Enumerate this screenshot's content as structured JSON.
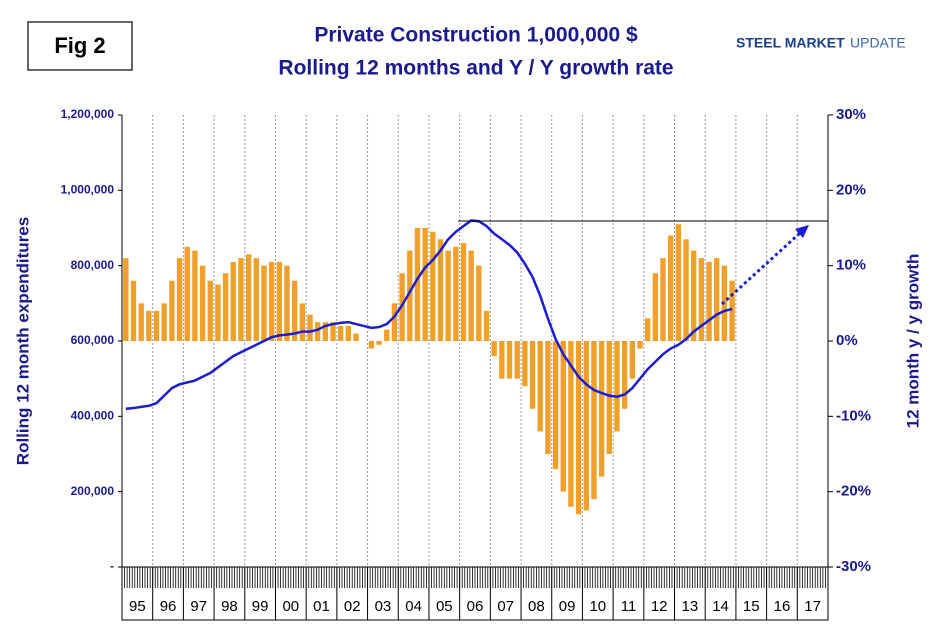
{
  "fig_label": "Fig 2",
  "logo": {
    "bold": "STEEL MARKET",
    "light": "UPDATE"
  },
  "chart_data": {
    "type": "combo",
    "title": [
      "Private Construction 1,000,000 $",
      "Rolling 12 months and Y / Y growth rate"
    ],
    "y_label": "Rolling 12 month expenditures",
    "y2_label": "12 month y / y growth",
    "categories": [
      "95",
      null,
      null,
      null,
      "96",
      null,
      null,
      null,
      "97",
      null,
      null,
      null,
      "98",
      null,
      null,
      null,
      "99",
      null,
      null,
      null,
      "00",
      null,
      null,
      null,
      "01",
      null,
      null,
      null,
      "02",
      null,
      null,
      null,
      "03",
      null,
      null,
      null,
      "04",
      null,
      null,
      null,
      "05",
      null,
      null,
      null,
      "06",
      null,
      null,
      null,
      "07",
      null,
      null,
      null,
      "08",
      null,
      null,
      null,
      "09",
      null,
      null,
      null,
      "10",
      null,
      null,
      null,
      "11",
      null,
      null,
      null,
      "12",
      null,
      null,
      null,
      "13",
      null,
      null,
      null,
      "14",
      null,
      null,
      null,
      "15",
      null,
      null,
      null,
      "16",
      null,
      null,
      null,
      "17",
      null,
      null,
      null
    ],
    "series": [
      {
        "type": "bar",
        "axis": "y2",
        "color": "#f0a02a",
        "values": [
          11,
          8,
          5,
          4,
          4,
          5,
          8,
          11,
          12.5,
          12,
          10,
          8,
          7.5,
          9,
          10.5,
          11,
          11.5,
          11,
          10,
          10.5,
          10.5,
          10,
          8,
          5,
          3.5,
          2.5,
          2.5,
          2.5,
          2,
          2,
          1,
          0,
          -1,
          -0.5,
          1.5,
          5,
          9,
          12,
          15,
          15,
          14.5,
          13.5,
          12,
          12.5,
          13,
          12,
          10,
          4,
          -2,
          -5,
          -5,
          -5,
          -6,
          -9,
          -12,
          -15,
          -17,
          -20,
          -22,
          -23,
          -22.5,
          -21,
          -18,
          -15,
          -12,
          -9,
          -5,
          -1,
          3,
          9,
          11,
          14,
          15.5,
          13.5,
          12,
          11,
          10.5,
          11,
          10,
          8,
          null,
          null,
          null,
          null,
          null,
          null,
          null,
          null,
          null,
          null,
          null,
          null
        ]
      },
      {
        "type": "line",
        "color": "#1c1cd0",
        "values": [
          420000,
          422000,
          425000,
          428000,
          435000,
          455000,
          475000,
          485000,
          490000,
          495000,
          505000,
          515000,
          530000,
          545000,
          560000,
          570000,
          580000,
          590000,
          600000,
          610000,
          615000,
          617000,
          620000,
          625000,
          625000,
          630000,
          640000,
          645000,
          648000,
          650000,
          645000,
          640000,
          635000,
          637000,
          645000,
          665000,
          695000,
          730000,
          765000,
          795000,
          815000,
          840000,
          870000,
          890000,
          905000,
          920000,
          918000,
          905000,
          885000,
          870000,
          855000,
          835000,
          805000,
          770000,
          720000,
          660000,
          605000,
          565000,
          535000,
          505000,
          485000,
          470000,
          462000,
          455000,
          452000,
          458000,
          475000,
          500000,
          525000,
          545000,
          565000,
          580000,
          590000,
          605000,
          625000,
          640000,
          655000,
          670000,
          680000,
          685000,
          null,
          null,
          null,
          null,
          null,
          null,
          null,
          null,
          null,
          null,
          null,
          null
        ]
      }
    ],
    "ylim": [
      0,
      1200000
    ],
    "yticks": [
      {
        "value": 0,
        "label": "-"
      },
      {
        "value": 200000,
        "label": "200,000"
      },
      {
        "value": 400000,
        "label": "400,000"
      },
      {
        "value": 600000,
        "label": "600,000"
      },
      {
        "value": 800000,
        "label": "800,000"
      },
      {
        "value": 1000000,
        "label": "1,000,000"
      },
      {
        "value": 1200000,
        "label": "1,200,000"
      }
    ],
    "y2lim": [
      -30,
      30
    ],
    "y2ticks": [
      {
        "value": -30,
        "label": "-30%"
      },
      {
        "value": -20,
        "label": "-20%"
      },
      {
        "value": -10,
        "label": "-10%"
      },
      {
        "value": 0,
        "label": "0%"
      },
      {
        "value": 10,
        "label": "10%"
      },
      {
        "value": 20,
        "label": "20%"
      },
      {
        "value": 30,
        "label": "30%"
      }
    ],
    "grid": true
  }
}
